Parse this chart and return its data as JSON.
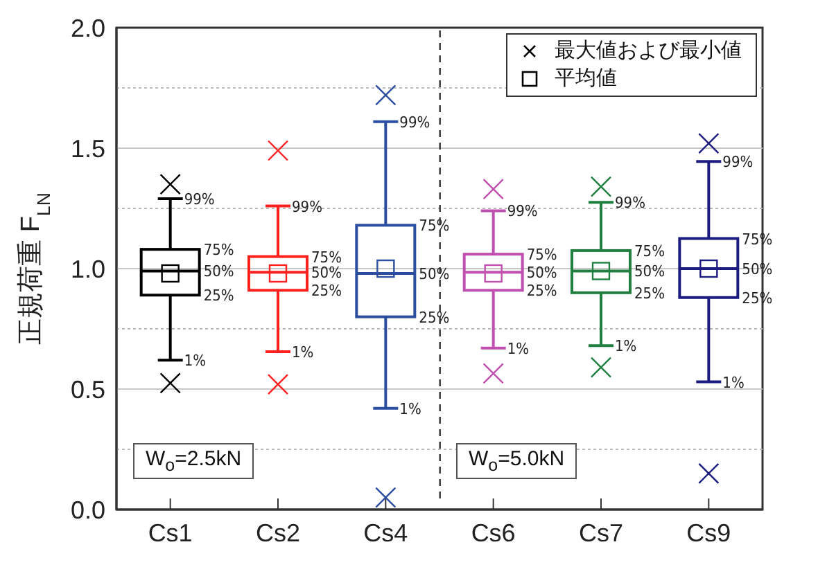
{
  "chart_data": {
    "type": "box",
    "ylabel": "正規荷重 F$_{LN}$",
    "categories": [
      "Cs1",
      "Cs2",
      "Cs4",
      "Cs6",
      "Cs7",
      "Cs9"
    ],
    "series": [
      {
        "colors": [
          "#000000",
          "#ff2020",
          "#2c4ea0",
          "#c050b0",
          "#208040",
          "#1c1c80"
        ],
        "boxes": [
          {
            "low": 0.62,
            "q1": 0.89,
            "median": 0.99,
            "q3": 1.08,
            "high": 1.29
          },
          {
            "low": 0.655,
            "q1": 0.91,
            "median": 0.985,
            "q3": 1.05,
            "high": 1.26
          },
          {
            "low": 0.42,
            "q1": 0.8,
            "median": 0.98,
            "q3": 1.18,
            "high": 1.61
          },
          {
            "low": 0.67,
            "q1": 0.91,
            "median": 0.985,
            "q3": 1.06,
            "high": 1.24
          },
          {
            "low": 0.68,
            "q1": 0.9,
            "median": 0.99,
            "q3": 1.075,
            "high": 1.275
          },
          {
            "low": 0.53,
            "q1": 0.88,
            "median": 1.0,
            "q3": 1.125,
            "high": 1.445
          }
        ]
      },
      {
        "type": "scatter",
        "name": "最大値および最小値",
        "marker": "cross",
        "x": [
          "Cs1",
          "Cs1",
          "Cs2",
          "Cs2",
          "Cs4",
          "Cs4",
          "Cs6",
          "Cs6",
          "Cs7",
          "Cs7",
          "Cs9",
          "Cs9"
        ],
        "values": [
          1.35,
          0.525,
          1.49,
          0.52,
          1.72,
          0.05,
          1.33,
          0.565,
          1.34,
          0.59,
          1.52,
          0.15
        ],
        "colors": [
          "#000000",
          "#000000",
          "#ff2020",
          "#ff2020",
          "#2c4ea0",
          "#2c4ea0",
          "#c050b0",
          "#c050b0",
          "#208040",
          "#208040",
          "#1c1c80",
          "#1c1c80"
        ]
      },
      {
        "type": "scatter",
        "name": "平均値",
        "marker": "square",
        "x": [
          "Cs1",
          "Cs2",
          "Cs4",
          "Cs6",
          "Cs7",
          "Cs9"
        ],
        "values": [
          0.98,
          0.98,
          1.0,
          0.98,
          0.99,
          1.0
        ],
        "colors": [
          "#000000",
          "#ff2020",
          "#2c4ea0",
          "#c050b0",
          "#208040",
          "#1c1c80"
        ]
      }
    ],
    "ylim": [
      0,
      2
    ],
    "yticks": [
      {
        "value": 0,
        "label": "0.0"
      },
      {
        "value": 0.25,
        "label": null
      },
      {
        "value": 0.5,
        "label": "0.5"
      },
      {
        "value": 0.75,
        "label": null
      },
      {
        "value": 1,
        "label": "1.0"
      },
      {
        "value": 1.25,
        "label": null
      },
      {
        "value": 1.5,
        "label": "1.5"
      },
      {
        "value": 1.75,
        "label": null
      },
      {
        "value": 2,
        "label": "2.0"
      }
    ],
    "grid": "y",
    "legend": "top right",
    "annotations": [
      "W$_{o}$=2.5kN",
      "W$_{o}$=5.0kN",
      {
        "text": "99%",
        "x": "Cs1",
        "y": 1.29
      },
      {
        "text": "75%",
        "x": "Cs1",
        "y": 1.08
      },
      {
        "text": "50%",
        "x": "Cs1",
        "y": 0.99
      },
      {
        "text": "25%",
        "x": "Cs1",
        "y": 0.89
      },
      {
        "text": "1%",
        "x": "Cs1",
        "y": 0.62
      },
      {
        "text": "99%",
        "x": "Cs2",
        "y": 1.26
      },
      {
        "text": "75%",
        "x": "Cs2",
        "y": 1.05
      },
      {
        "text": "50%",
        "x": "Cs2",
        "y": 0.985
      },
      {
        "text": "25%",
        "x": "Cs2",
        "y": 0.91
      },
      {
        "text": "1%",
        "x": "Cs2",
        "y": 0.655
      },
      {
        "text": "99%",
        "x": "Cs4",
        "y": 1.61
      },
      {
        "text": "75%",
        "x": "Cs4",
        "y": 1.18
      },
      {
        "text": "50%",
        "x": "Cs4",
        "y": 0.98
      },
      {
        "text": "25%",
        "x": "Cs4",
        "y": 0.8
      },
      {
        "text": "1%",
        "x": "Cs4",
        "y": 0.42
      },
      {
        "text": "99%",
        "x": "Cs6",
        "y": 1.24
      },
      {
        "text": "75%",
        "x": "Cs6",
        "y": 1.06
      },
      {
        "text": "50%",
        "x": "Cs6",
        "y": 0.985
      },
      {
        "text": "25%",
        "x": "Cs6",
        "y": 0.91
      },
      {
        "text": "1%",
        "x": "Cs6",
        "y": 0.67
      },
      {
        "text": "99%",
        "x": "Cs7",
        "y": 1.275
      },
      {
        "text": "75%",
        "x": "Cs7",
        "y": 1.075
      },
      {
        "text": "50%",
        "x": "Cs7",
        "y": 0.99
      },
      {
        "text": "25%",
        "x": "Cs7",
        "y": 0.9
      },
      {
        "text": "1%",
        "x": "Cs7",
        "y": 0.68
      },
      {
        "text": "99%",
        "x": "Cs9",
        "y": 1.445
      },
      {
        "text": "75%",
        "x": "Cs9",
        "y": 1.125
      },
      {
        "text": "50%",
        "x": "Cs9",
        "y": 1.0
      },
      {
        "text": "25%",
        "x": "Cs9",
        "y": 0.88
      },
      {
        "text": "1%",
        "x": "Cs9",
        "y": 0.53
      }
    ]
  }
}
